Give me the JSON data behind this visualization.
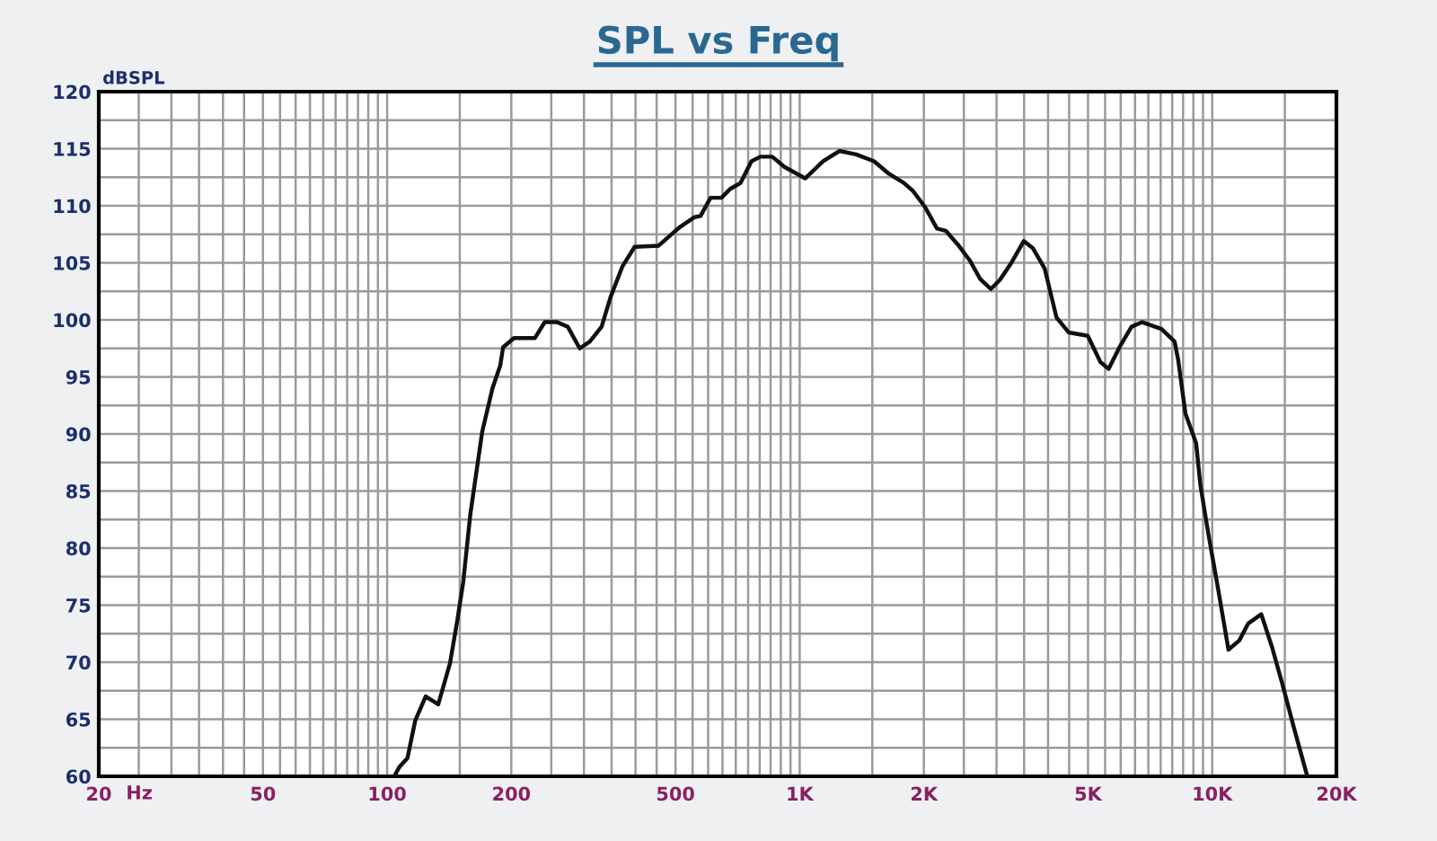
{
  "chart_data": {
    "type": "line",
    "title": "SPL vs Freq",
    "xlabel": "Hz",
    "ylabel": "dBSPL",
    "log": "x",
    "grid": true,
    "x": [
      104,
      107,
      112,
      117,
      124,
      133,
      142,
      148,
      153,
      159,
      166,
      170,
      180,
      188,
      191,
      203,
      228,
      241,
      258,
      274,
      293,
      310,
      331,
      348,
      372,
      398,
      455,
      511,
      556,
      575,
      608,
      646,
      680,
      719,
      764,
      803,
      858,
      918,
      1031,
      1140,
      1248,
      1371,
      1515,
      1646,
      1789,
      1882,
      2012,
      2152,
      2262,
      2418,
      2585,
      2737,
      2907,
      3057,
      3246,
      3493,
      3671,
      3925,
      4194,
      4486,
      4994,
      5358,
      5610,
      5959,
      6375,
      6766,
      7533,
      8106,
      8270,
      8610,
      9141,
      9364,
      9781,
      10280,
      10950,
      11630,
      12230,
      13150,
      13970,
      14840,
      15710,
      17000
    ],
    "series": [
      {
        "color": "#111111",
        "values": [
          60,
          60.8,
          61.6,
          64.9,
          67,
          66.3,
          69.9,
          73.7,
          77.1,
          82.9,
          87.6,
          90.2,
          94,
          96,
          97.6,
          98.4,
          98.4,
          99.8,
          99.8,
          99.4,
          97.5,
          98.1,
          99.4,
          102,
          104.7,
          106.4,
          106.5,
          108.1,
          109,
          109.1,
          110.7,
          110.7,
          111.5,
          112,
          113.9,
          114.3,
          114.3,
          113.4,
          112.4,
          113.9,
          114.8,
          114.5,
          113.9,
          112.8,
          112,
          111.3,
          109.9,
          108,
          107.8,
          106.6,
          105.2,
          103.6,
          102.7,
          103.5,
          104.9,
          106.9,
          106.3,
          104.5,
          100.2,
          98.9,
          98.6,
          96.3,
          95.7,
          97.6,
          99.4,
          99.8,
          99.2,
          98.1,
          96.5,
          91.8,
          89.2,
          85.5,
          81.3,
          76.9,
          71.1,
          71.9,
          73.4,
          74.2,
          71.3,
          67.9,
          64.5,
          60
        ]
      }
    ],
    "xlim": [
      20,
      20000
    ],
    "ylim": [
      60,
      120
    ],
    "xticks": [
      20,
      {
        "value": 25,
        "label": null
      },
      {
        "value": 30,
        "label": null
      },
      {
        "value": 35,
        "label": null
      },
      {
        "value": 40,
        "label": null
      },
      {
        "value": 45,
        "label": null
      },
      50,
      {
        "value": 55,
        "label": null
      },
      {
        "value": 60,
        "label": null
      },
      {
        "value": 65,
        "label": null
      },
      {
        "value": 70,
        "label": null
      },
      {
        "value": 75,
        "label": null
      },
      {
        "value": 80,
        "label": null
      },
      {
        "value": 85,
        "label": null
      },
      {
        "value": 90,
        "label": null
      },
      {
        "value": 95,
        "label": null
      },
      100,
      {
        "value": 150,
        "label": null
      },
      200,
      {
        "value": 250,
        "label": null
      },
      {
        "value": 300,
        "label": null
      },
      {
        "value": 350,
        "label": null
      },
      {
        "value": 400,
        "label": null
      },
      {
        "value": 450,
        "label": null
      },
      500,
      {
        "value": 550,
        "label": null
      },
      {
        "value": 600,
        "label": null
      },
      {
        "value": 650,
        "label": null
      },
      {
        "value": 700,
        "label": null
      },
      {
        "value": 750,
        "label": null
      },
      {
        "value": 800,
        "label": null
      },
      {
        "value": 850,
        "label": null
      },
      {
        "value": 900,
        "label": null
      },
      {
        "value": 950,
        "label": null
      },
      {
        "value": 1000,
        "label": "1K"
      },
      {
        "value": 1500,
        "label": null
      },
      {
        "value": 2000,
        "label": "2K"
      },
      {
        "value": 2500,
        "label": null
      },
      {
        "value": 3000,
        "label": null
      },
      {
        "value": 3500,
        "label": null
      },
      {
        "value": 4000,
        "label": null
      },
      {
        "value": 4500,
        "label": null
      },
      {
        "value": 5000,
        "label": "5K"
      },
      {
        "value": 5500,
        "label": null
      },
      {
        "value": 6000,
        "label": null
      },
      {
        "value": 6500,
        "label": null
      },
      {
        "value": 7000,
        "label": null
      },
      {
        "value": 7500,
        "label": null
      },
      {
        "value": 8000,
        "label": null
      },
      {
        "value": 8500,
        "label": null
      },
      {
        "value": 9000,
        "label": null
      },
      {
        "value": 9500,
        "label": null
      },
      {
        "value": 10000,
        "label": "10K"
      },
      {
        "value": 15000,
        "label": null
      },
      {
        "value": 20000,
        "label": "20K"
      }
    ],
    "yticks": [
      60,
      {
        "value": 62.5,
        "label": null
      },
      65,
      {
        "value": 67.5,
        "label": null
      },
      70,
      {
        "value": 72.5,
        "label": null
      },
      75,
      {
        "value": 77.5,
        "label": null
      },
      80,
      {
        "value": 82.5,
        "label": null
      },
      85,
      {
        "value": 87.5,
        "label": null
      },
      90,
      {
        "value": 92.5,
        "label": null
      },
      95,
      {
        "value": 97.5,
        "label": null
      },
      100,
      {
        "value": 102.5,
        "label": null
      },
      105,
      {
        "value": 107.5,
        "label": null
      },
      110,
      {
        "value": 112.5,
        "label": null
      },
      115,
      {
        "value": 117.5,
        "label": null
      },
      120
    ]
  }
}
